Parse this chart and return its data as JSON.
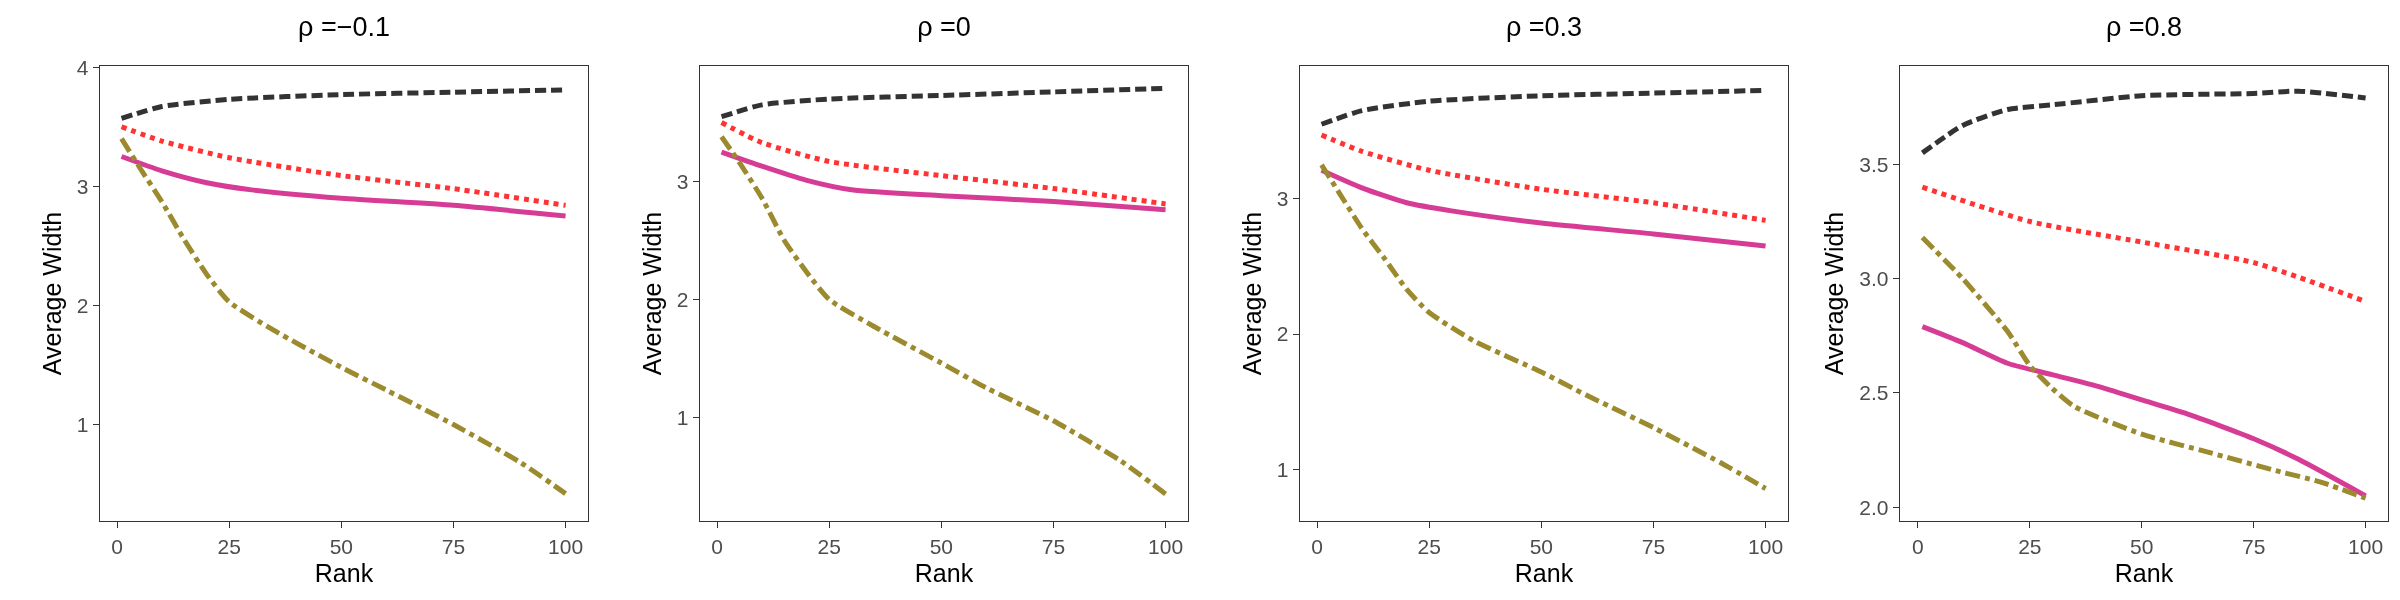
{
  "chart_data": [
    {
      "type": "line",
      "title": "ρ =−0.1",
      "xlabel": "Rank",
      "ylabel": "Average Width",
      "xlim": [
        -3.8,
        105
      ],
      "xticks": [
        0,
        25,
        50,
        75,
        100
      ],
      "ylim": [
        0.19,
        4.01
      ],
      "yticks": [
        1,
        2,
        3,
        4
      ],
      "grid": false,
      "marker": "none",
      "series": [
        {
          "color": "#333333",
          "line_style": "dashed",
          "x": [
            1,
            10,
            25,
            50,
            75,
            100
          ],
          "values": [
            3.57,
            3.67,
            3.73,
            3.77,
            3.79,
            3.81
          ]
        },
        {
          "color": "#ff3333",
          "line_style": "dotted",
          "x": [
            1,
            10,
            25,
            50,
            75,
            100
          ],
          "values": [
            3.5,
            3.38,
            3.24,
            3.09,
            2.98,
            2.84
          ]
        },
        {
          "color": "#d63c96",
          "line_style": "solid",
          "x": [
            1,
            10,
            20,
            30,
            50,
            75,
            100
          ],
          "values": [
            3.25,
            3.13,
            3.03,
            2.97,
            2.9,
            2.84,
            2.75
          ]
        },
        {
          "color": "#9c8a2e",
          "line_style": "dashdot",
          "x": [
            1,
            5,
            10,
            15,
            20,
            25,
            35,
            50,
            60,
            75,
            90,
            100
          ],
          "values": [
            3.4,
            3.16,
            2.87,
            2.55,
            2.26,
            2.03,
            1.79,
            1.48,
            1.29,
            1.0,
            0.68,
            0.42
          ]
        }
      ]
    },
    {
      "type": "line",
      "title": "ρ =0",
      "xlabel": "Rank",
      "ylabel": "Average Width",
      "xlim": [
        -3.8,
        105
      ],
      "xticks": [
        0,
        25,
        50,
        75,
        100
      ],
      "ylim": [
        0.12,
        3.98
      ],
      "yticks": [
        1,
        2,
        3
      ],
      "grid": false,
      "marker": "none",
      "series": [
        {
          "color": "#333333",
          "line_style": "dashed",
          "x": [
            1,
            10,
            25,
            50,
            75,
            100
          ],
          "values": [
            3.55,
            3.65,
            3.7,
            3.73,
            3.76,
            3.79
          ]
        },
        {
          "color": "#ff3333",
          "line_style": "dotted",
          "x": [
            1,
            10,
            25,
            50,
            75,
            100
          ],
          "values": [
            3.5,
            3.33,
            3.17,
            3.05,
            2.94,
            2.81
          ]
        },
        {
          "color": "#d63c96",
          "line_style": "solid",
          "x": [
            1,
            10,
            20,
            30,
            50,
            75,
            100
          ],
          "values": [
            3.25,
            3.13,
            3.01,
            2.93,
            2.88,
            2.83,
            2.76
          ]
        },
        {
          "color": "#9c8a2e",
          "line_style": "dashdot",
          "x": [
            1,
            5,
            10,
            15,
            20,
            25,
            35,
            50,
            60,
            75,
            90,
            100
          ],
          "values": [
            3.38,
            3.16,
            2.86,
            2.5,
            2.23,
            2.0,
            1.77,
            1.46,
            1.25,
            0.97,
            0.63,
            0.35
          ]
        }
      ]
    },
    {
      "type": "line",
      "title": "ρ =0.3",
      "xlabel": "Rank",
      "ylabel": "Average Width",
      "xlim": [
        -3.8,
        105
      ],
      "xticks": [
        0,
        25,
        50,
        75,
        100
      ],
      "ylim": [
        0.62,
        3.98
      ],
      "yticks": [
        1,
        2,
        3
      ],
      "grid": false,
      "marker": "none",
      "series": [
        {
          "color": "#333333",
          "line_style": "dashed",
          "x": [
            1,
            10,
            25,
            50,
            75,
            100
          ],
          "values": [
            3.55,
            3.65,
            3.72,
            3.76,
            3.78,
            3.8
          ]
        },
        {
          "color": "#ff3333",
          "line_style": "dotted",
          "x": [
            1,
            10,
            25,
            50,
            75,
            100
          ],
          "values": [
            3.47,
            3.35,
            3.21,
            3.07,
            2.97,
            2.84
          ]
        },
        {
          "color": "#d63c96",
          "line_style": "solid",
          "x": [
            1,
            10,
            20,
            30,
            50,
            75,
            100
          ],
          "values": [
            3.21,
            3.08,
            2.97,
            2.91,
            2.82,
            2.74,
            2.65
          ]
        },
        {
          "color": "#9c8a2e",
          "line_style": "dashdot",
          "x": [
            1,
            5,
            10,
            15,
            20,
            25,
            35,
            50,
            60,
            75,
            90,
            100
          ],
          "values": [
            3.25,
            3.04,
            2.78,
            2.56,
            2.33,
            2.16,
            1.95,
            1.72,
            1.55,
            1.31,
            1.05,
            0.86
          ]
        }
      ]
    },
    {
      "type": "line",
      "title": "ρ =0.8",
      "xlabel": "Rank",
      "ylabel": "Average Width",
      "xlim": [
        -4,
        105
      ],
      "xticks": [
        0,
        25,
        50,
        75,
        100
      ],
      "ylim": [
        1.94,
        3.93
      ],
      "yticks": [
        {
          "value": 2,
          "label": "2.0"
        },
        2.5,
        {
          "value": 3,
          "label": "3.0"
        },
        3.5
      ],
      "grid": false,
      "marker": "none",
      "series": [
        {
          "color": "#333333",
          "line_style": "dashed",
          "x": [
            1,
            10,
            20,
            30,
            50,
            75,
            85,
            100
          ],
          "values": [
            3.55,
            3.67,
            3.74,
            3.76,
            3.8,
            3.81,
            3.82,
            3.79
          ]
        },
        {
          "color": "#ff3333",
          "line_style": "dotted",
          "x": [
            1,
            25,
            50,
            75,
            100
          ],
          "values": [
            3.4,
            3.25,
            3.16,
            3.07,
            2.9
          ]
        },
        {
          "color": "#d63c96",
          "line_style": "solid",
          "x": [
            1,
            10,
            20,
            30,
            40,
            50,
            60,
            75,
            85,
            100
          ],
          "values": [
            2.79,
            2.72,
            2.63,
            2.58,
            2.53,
            2.47,
            2.41,
            2.3,
            2.21,
            2.05
          ]
        },
        {
          "color": "#9c8a2e",
          "line_style": "dashdot",
          "x": [
            1,
            10,
            20,
            25,
            30,
            35,
            50,
            65,
            80,
            90,
            100
          ],
          "values": [
            3.18,
            3.0,
            2.77,
            2.62,
            2.52,
            2.44,
            2.32,
            2.24,
            2.16,
            2.11,
            2.04
          ]
        }
      ]
    }
  ]
}
